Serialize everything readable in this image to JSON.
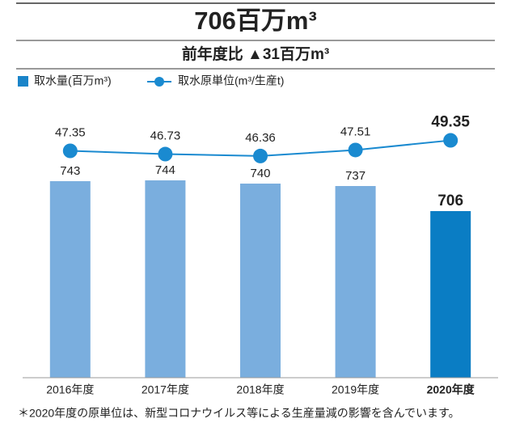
{
  "chart_data": {
    "type": "bar-line",
    "title": "706百万m³",
    "subtitle": "前年度比 ▲31百万m³",
    "footnote": "＊2020年度の原単位は、新型コロナウイルス等による生産量減の影響を含んでいます。",
    "categories": [
      "2016年度",
      "2017年度",
      "2018年度",
      "2019年度",
      "2020年度"
    ],
    "series": [
      {
        "name": "取水量(百万m³)",
        "type": "bar",
        "color": "#1a84c9",
        "colors": [
          "#7aaede",
          "#7aaede",
          "#7aaede",
          "#7aaede",
          "#0a7dc4"
        ],
        "values": [
          743,
          744,
          740,
          737,
          706
        ]
      },
      {
        "name": "取水原単位(m³/生産t)",
        "type": "line",
        "axis": "y2",
        "color": "#1a8ad0",
        "values": [
          47.35,
          46.73,
          46.36,
          47.51,
          49.35
        ]
      }
    ],
    "ylim": [
      500,
      830
    ],
    "y2lim": [
      4,
      55
    ]
  }
}
